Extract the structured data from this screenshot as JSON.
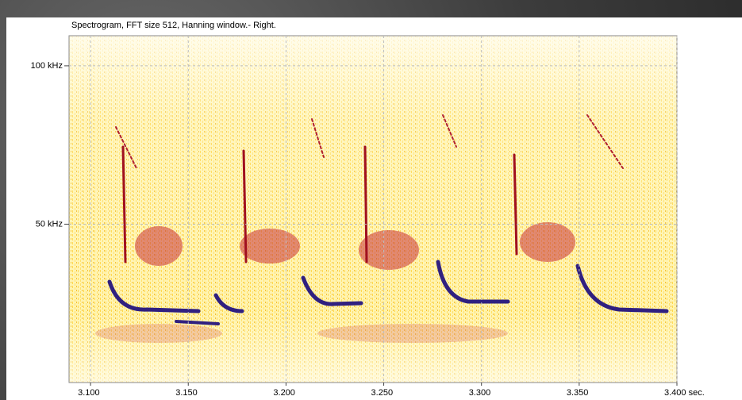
{
  "chart_data": {
    "type": "spectrogram",
    "title": "Spectrogram, FFT size 512, Hanning window.- Right.",
    "xlim": [
      3.089,
      3.4
    ],
    "xticks": [
      {
        "value": 3.1,
        "label": "3.100"
      },
      {
        "value": 3.15,
        "label": "3.150"
      },
      {
        "value": 3.2,
        "label": "3.200"
      },
      {
        "value": 3.25,
        "label": "3.250"
      },
      {
        "value": 3.3,
        "label": "3.300"
      },
      {
        "value": 3.35,
        "label": "3.350"
      },
      {
        "value": 3.4,
        "label": "3.400 sec."
      }
    ],
    "ylim": [
      0,
      109.5
    ],
    "yticks": [
      {
        "value": 50,
        "label": "50 kHz"
      },
      {
        "value": 100,
        "label": "100 kHz"
      }
    ],
    "grid": true
  }
}
